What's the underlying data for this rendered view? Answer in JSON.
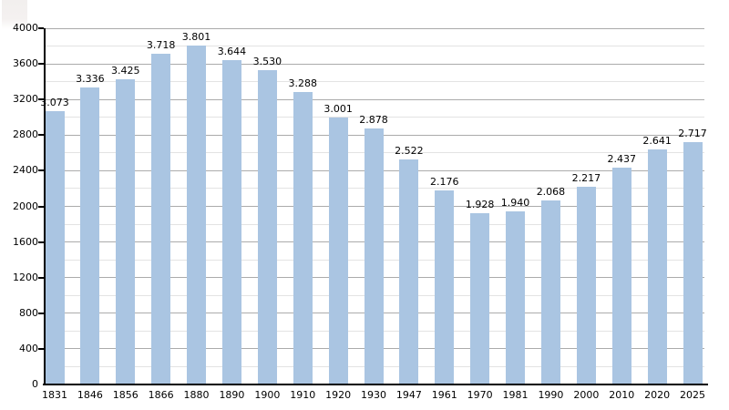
{
  "chart_data": {
    "type": "bar",
    "title": "",
    "xlabel": "",
    "ylabel": "",
    "categories": [
      "1831",
      "1846",
      "1856",
      "1866",
      "1880",
      "1890",
      "1900",
      "1910",
      "1920",
      "1930",
      "1947",
      "1961",
      "1970",
      "1981",
      "1990",
      "2000",
      "2010",
      "2020",
      "2025"
    ],
    "values": [
      3073,
      3336,
      3425,
      3718,
      3801,
      3644,
      3530,
      3288,
      3001,
      2878,
      2522,
      2176,
      1928,
      1940,
      2068,
      2217,
      2437,
      2641,
      2717
    ],
    "value_labels": [
      "3.073",
      "3.336",
      "3.425",
      "3.718",
      "3.801",
      "3.644",
      "3.530",
      "3.288",
      "3.001",
      "2.878",
      "2.522",
      "2.176",
      "1.928",
      "1.940",
      "2.068",
      "2.217",
      "2.437",
      "2.641",
      "2.717"
    ],
    "ylim": [
      0,
      4000
    ],
    "ytick_major_step": 400,
    "ytick_minor_step": 200,
    "ytick_labels": [
      "0",
      "400",
      "800",
      "1200",
      "1600",
      "2000",
      "2400",
      "2800",
      "3200",
      "3600",
      "4000"
    ],
    "grid": "on",
    "legend": "none",
    "colors": {
      "bar_fill": "#aac5e2",
      "major_grid": "#ababab",
      "minor_grid": "#e3e3e3",
      "axis": "#000000",
      "label_text": "#000000",
      "background": "#ffffff",
      "corner_smudge": "#f3f0ef"
    }
  }
}
